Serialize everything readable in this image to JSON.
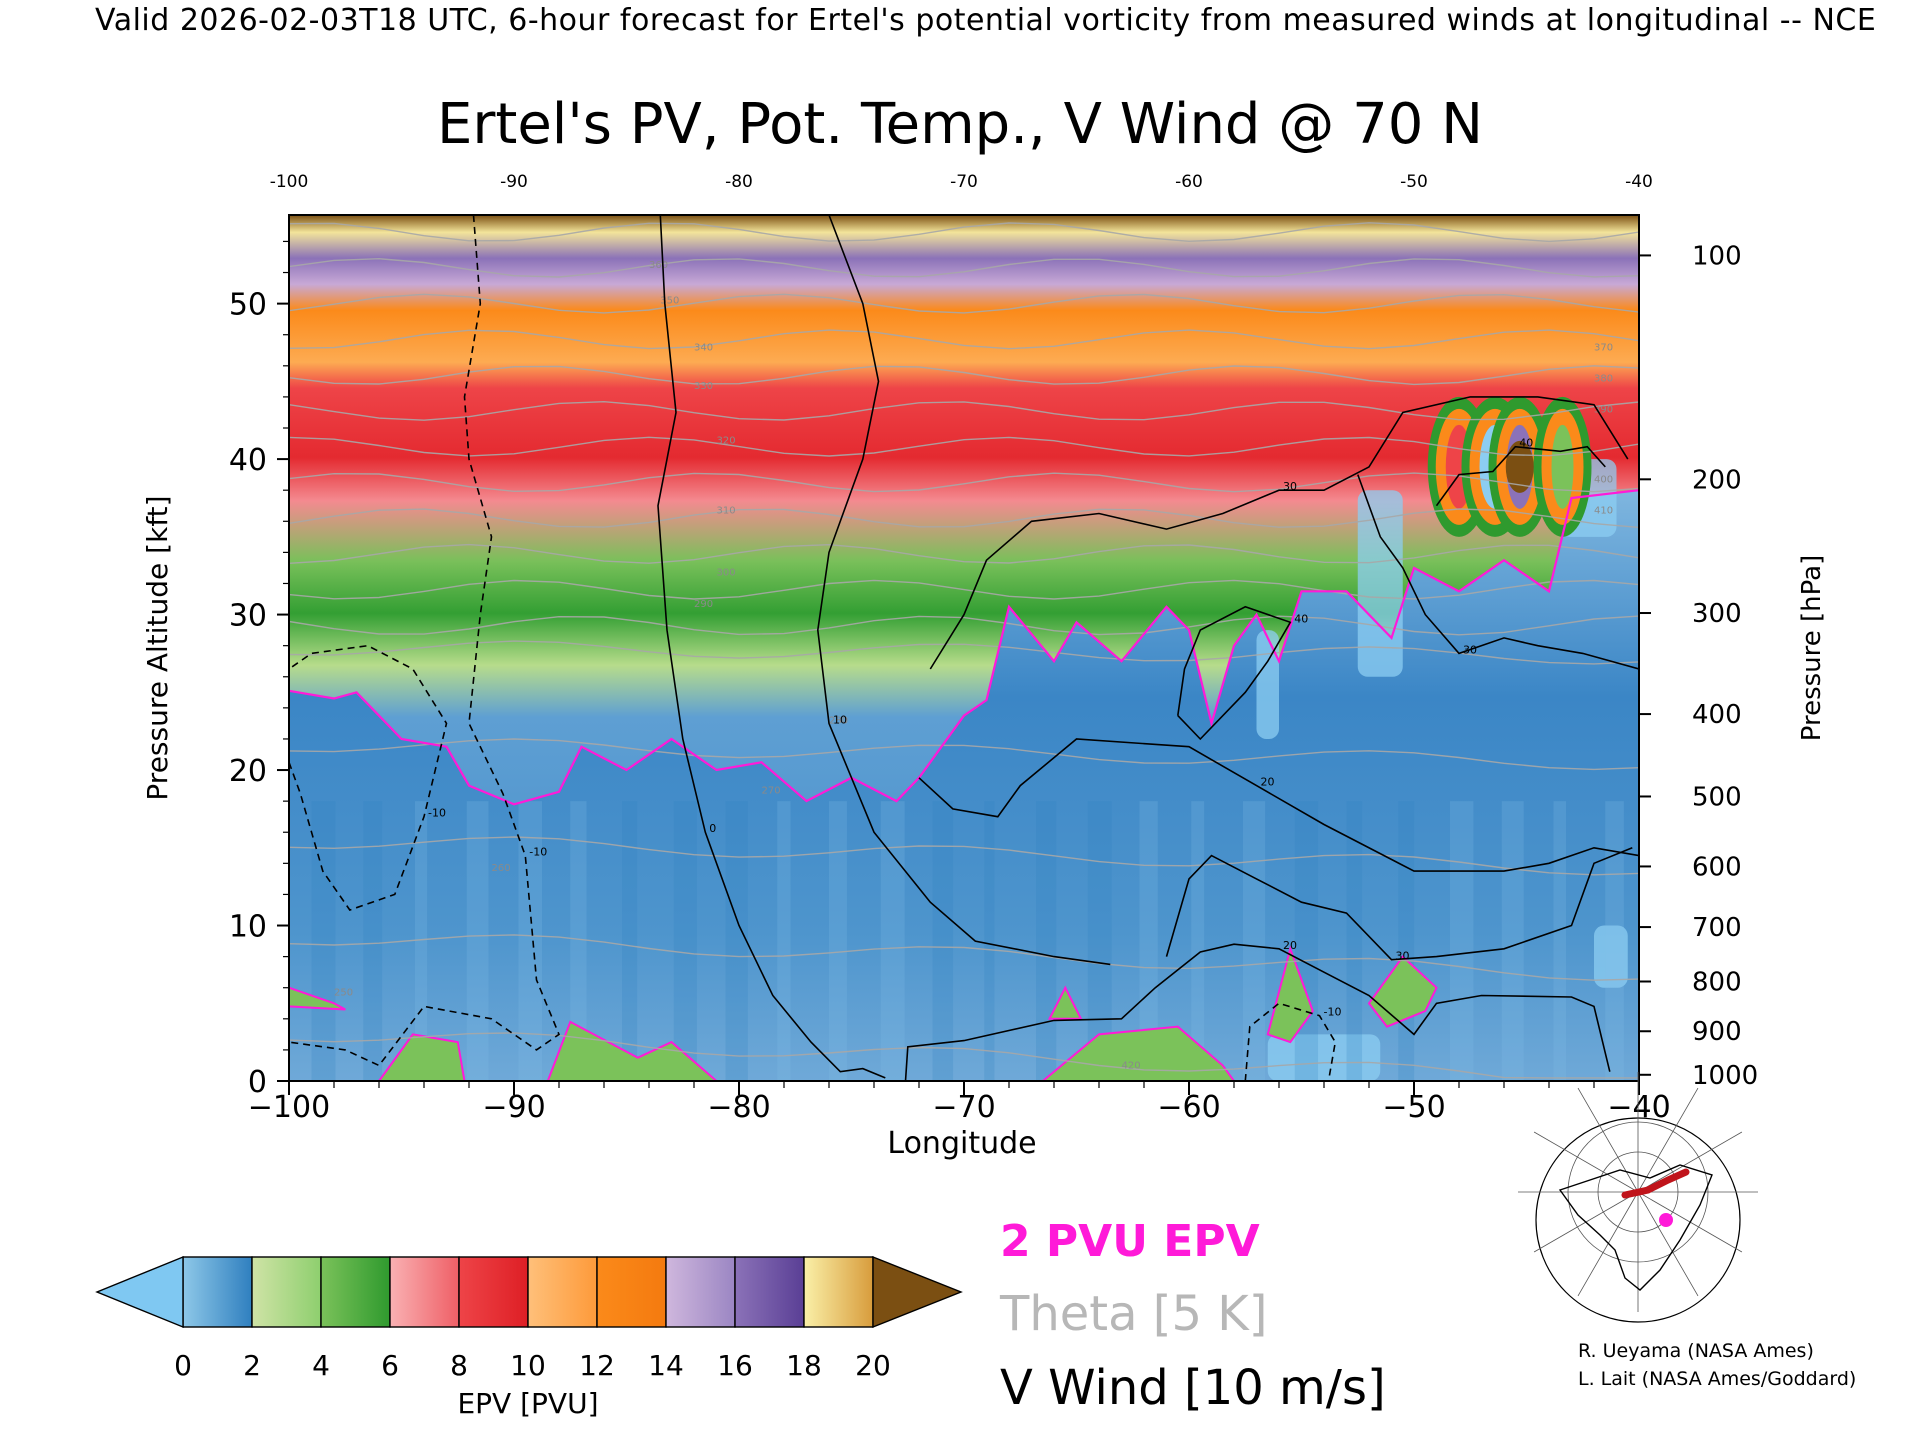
{
  "header": {
    "valid_line": "Valid 2026-02-03T18 UTC, 6-hour forecast for Ertel's potential vorticity from measured winds at longitudinal -- NCE"
  },
  "chart_data": {
    "type": "heatmap",
    "title": "Ertel's PV, Pot. Temp., V Wind @ 70 N",
    "xlabel": "Longitude",
    "ylabel": "Pressure Altitude [kft]",
    "y2label": "Pressure [hPa]",
    "xlim": [
      -100,
      -40
    ],
    "ylim": [
      0,
      55.7
    ],
    "x_ticks": [
      "−100",
      "−90",
      "−80",
      "−70",
      "−60",
      "−50",
      "−40"
    ],
    "x_tick_values": [
      -100,
      -90,
      -80,
      -70,
      -60,
      -50,
      -40
    ],
    "top_ticks": [
      "-100",
      "-90",
      "-80",
      "-70",
      "-60",
      "-50",
      "-40"
    ],
    "y_ticks": [
      "0",
      "10",
      "20",
      "30",
      "40",
      "50"
    ],
    "y_tick_values": [
      0,
      10,
      20,
      30,
      40,
      50
    ],
    "pressure_ticks": [
      {
        "label": "100",
        "kft": 53.1
      },
      {
        "label": "200",
        "kft": 38.7
      },
      {
        "label": "300",
        "kft": 30.1
      },
      {
        "label": "400",
        "kft": 23.6
      },
      {
        "label": "500",
        "kft": 18.3
      },
      {
        "label": "600",
        "kft": 13.8
      },
      {
        "label": "700",
        "kft": 9.9
      },
      {
        "label": "800",
        "kft": 6.4
      },
      {
        "label": "900",
        "kft": 3.2
      },
      {
        "label": "1000",
        "kft": 0.4
      }
    ],
    "epv_2pvu_trop_kft": [
      [
        -100,
        25.1
      ],
      [
        -98,
        24.6
      ],
      [
        -97,
        25.0
      ],
      [
        -95,
        22.0
      ],
      [
        -93,
        21.5
      ],
      [
        -92,
        19.0
      ],
      [
        -90,
        17.8
      ],
      [
        -88,
        18.6
      ],
      [
        -87,
        21.5
      ],
      [
        -85,
        20.0
      ],
      [
        -83,
        22.0
      ],
      [
        -81,
        20.0
      ],
      [
        -79,
        20.5
      ],
      [
        -77,
        18.0
      ],
      [
        -75,
        19.5
      ],
      [
        -73,
        18.0
      ],
      [
        -72,
        19.5
      ],
      [
        -70,
        23.5
      ],
      [
        -69,
        24.5
      ],
      [
        -68,
        30.5
      ],
      [
        -66,
        27.0
      ],
      [
        -65,
        29.5
      ],
      [
        -63,
        27.0
      ],
      [
        -61,
        30.5
      ],
      [
        -60,
        29.0
      ],
      [
        -59,
        23.0
      ],
      [
        -58,
        28.0
      ],
      [
        -57,
        30.0
      ],
      [
        -56,
        27.0
      ],
      [
        -55,
        31.5
      ],
      [
        -53,
        31.5
      ],
      [
        -51,
        28.5
      ],
      [
        -50,
        33.0
      ],
      [
        -48,
        31.5
      ],
      [
        -46,
        33.5
      ],
      [
        -44,
        31.5
      ],
      [
        -43,
        37.5
      ],
      [
        -40,
        38.0
      ]
    ],
    "theta_labels": [
      "250",
      "260",
      "270",
      "280",
      "290",
      "300",
      "310",
      "320",
      "330",
      "340",
      "350",
      "360",
      "370",
      "380",
      "390",
      "400",
      "410",
      "420"
    ],
    "v_wind_contours": [
      {
        "label": "0",
        "style": "solid",
        "points": [
          [
            -83.5,
            55.7
          ],
          [
            -83.3,
            50
          ],
          [
            -82.8,
            43
          ],
          [
            -83.6,
            37
          ],
          [
            -83.2,
            29
          ],
          [
            -82.5,
            22
          ],
          [
            -81.5,
            16
          ],
          [
            -80.0,
            10
          ],
          [
            -78.5,
            5.5
          ],
          [
            -76.8,
            2.5
          ],
          [
            -75.5,
            0.6
          ],
          [
            -74.5,
            0.8
          ],
          [
            -73.5,
            0.2
          ]
        ]
      },
      {
        "label": "10",
        "style": "solid",
        "points": [
          [
            -76.0,
            55.7
          ],
          [
            -74.5,
            50
          ],
          [
            -73.8,
            45
          ],
          [
            -74.5,
            40
          ],
          [
            -76.0,
            34
          ],
          [
            -76.5,
            29
          ],
          [
            -76.0,
            23
          ],
          [
            -74.0,
            16
          ],
          [
            -71.5,
            11.5
          ],
          [
            -69.5,
            9.0
          ],
          [
            -66.0,
            8.0
          ],
          [
            -63.5,
            7.5
          ]
        ]
      },
      {
        "label": "20",
        "style": "solid",
        "points": [
          [
            -72.6,
            0
          ],
          [
            -72.5,
            2.2
          ],
          [
            -70,
            2.6
          ],
          [
            -66,
            3.9
          ],
          [
            -63,
            4.0
          ],
          [
            -61.5,
            6.0
          ],
          [
            -59.5,
            8.3
          ],
          [
            -58,
            8.8
          ],
          [
            -56,
            8.5
          ],
          [
            -54,
            7.0
          ],
          [
            -52,
            5.5
          ],
          [
            -50,
            3.0
          ],
          [
            -49,
            5.0
          ],
          [
            -47,
            5.5
          ],
          [
            -43,
            5.4
          ],
          [
            -42,
            4.8
          ],
          [
            -41.3,
            0.6
          ]
        ]
      },
      {
        "label": "20",
        "style": "solid",
        "points": [
          [
            -72.0,
            19.5
          ],
          [
            -70.5,
            17.5
          ],
          [
            -68.5,
            17.0
          ],
          [
            -67.5,
            19.0
          ],
          [
            -65.0,
            22.0
          ],
          [
            -60,
            21.5
          ],
          [
            -57,
            19.0
          ],
          [
            -54,
            16.5
          ],
          [
            -50,
            13.5
          ],
          [
            -46,
            13.5
          ],
          [
            -44,
            14.0
          ],
          [
            -42,
            15.0
          ],
          [
            -40,
            14.5
          ]
        ]
      },
      {
        "label": "30",
        "style": "solid",
        "points": [
          [
            -61,
            8.0
          ],
          [
            -60,
            13.0
          ],
          [
            -59,
            14.5
          ],
          [
            -57,
            13.0
          ],
          [
            -55,
            11.5
          ],
          [
            -53,
            10.8
          ],
          [
            -51,
            7.8
          ],
          [
            -49,
            8.0
          ],
          [
            -46,
            8.5
          ],
          [
            -43,
            10.0
          ],
          [
            -42,
            14.0
          ],
          [
            -40.3,
            15.0
          ]
        ]
      },
      {
        "label": "30",
        "style": "solid",
        "points": [
          [
            -71.5,
            26.5
          ],
          [
            -70.0,
            30.0
          ],
          [
            -69.0,
            33.5
          ],
          [
            -67.0,
            36.0
          ],
          [
            -64.0,
            36.5
          ],
          [
            -61.0,
            35.5
          ],
          [
            -58.5,
            36.5
          ],
          [
            -56.0,
            38.0
          ],
          [
            -54.0,
            38.0
          ],
          [
            -52.0,
            39.5
          ],
          [
            -50.5,
            43.0
          ],
          [
            -47.5,
            44.0
          ],
          [
            -44.5,
            44.0
          ],
          [
            -42,
            43.5
          ],
          [
            -40.5,
            40.0
          ]
        ]
      },
      {
        "label": "30",
        "style": "solid",
        "points": [
          [
            -52.5,
            39.0
          ],
          [
            -51.5,
            35.0
          ],
          [
            -50.5,
            33.0
          ],
          [
            -49.5,
            30.0
          ],
          [
            -48,
            27.5
          ],
          [
            -46,
            28.5
          ],
          [
            -44.5,
            28.0
          ],
          [
            -42.5,
            27.5
          ],
          [
            -40,
            26.5
          ]
        ]
      },
      {
        "label": "40",
        "style": "solid",
        "points": [
          [
            -60.5,
            23.5
          ],
          [
            -60.2,
            26.5
          ],
          [
            -59.5,
            29.0
          ],
          [
            -57.5,
            30.5
          ],
          [
            -55.5,
            29.5
          ],
          [
            -56.5,
            27.0
          ],
          [
            -57.5,
            25.0
          ],
          [
            -59.5,
            22.0
          ],
          [
            -60.5,
            23.5
          ]
        ]
      },
      {
        "label": "40",
        "style": "solid",
        "points": [
          [
            -49,
            37.0
          ],
          [
            -48,
            39.0
          ],
          [
            -46.5,
            39.2
          ],
          [
            -45.5,
            40.8
          ],
          [
            -43.5,
            40.5
          ],
          [
            -42.3,
            40.8
          ],
          [
            -41.5,
            39.5
          ]
        ]
      },
      {
        "label": "-10",
        "style": "dashed",
        "points": [
          [
            -91.8,
            55.7
          ],
          [
            -91.5,
            50
          ],
          [
            -92.2,
            44
          ],
          [
            -92.0,
            40
          ],
          [
            -91.0,
            35
          ],
          [
            -91.5,
            30
          ],
          [
            -92.0,
            23
          ],
          [
            -90.5,
            18.5
          ],
          [
            -89.5,
            14.5
          ],
          [
            -89.0,
            6.5
          ],
          [
            -88.0,
            3.0
          ],
          [
            -89.0,
            2.0
          ],
          [
            -91.0,
            4.0
          ],
          [
            -94.0,
            4.8
          ],
          [
            -96.0,
            1.0
          ],
          [
            -97.5,
            2.0
          ],
          [
            -100,
            2.5
          ]
        ]
      },
      {
        "label": "-10",
        "style": "dashed",
        "points": [
          [
            -100,
            20.5
          ],
          [
            -99.5,
            18.5
          ],
          [
            -98.5,
            13.5
          ],
          [
            -97.3,
            11.0
          ],
          [
            -95.3,
            12.0
          ],
          [
            -94.0,
            17.0
          ],
          [
            -93.0,
            23.0
          ],
          [
            -94.5,
            26.5
          ],
          [
            -96.5,
            28.0
          ],
          [
            -99,
            27.5
          ],
          [
            -100,
            26.5
          ]
        ]
      },
      {
        "label": "-10",
        "style": "dashed",
        "points": [
          [
            -57.5,
            0
          ],
          [
            -57.3,
            3.5
          ],
          [
            -56.0,
            5.0
          ],
          [
            -54.2,
            4.2
          ],
          [
            -53.5,
            2.5
          ],
          [
            -53.8,
            0
          ]
        ]
      }
    ],
    "colorbar": {
      "label": "EPV [PVU]",
      "ticks": [
        "0",
        "2",
        "4",
        "6",
        "8",
        "10",
        "12",
        "14",
        "16",
        "18",
        "20"
      ],
      "underflow_color": "#7fc8f2",
      "overflow_color": "#7b4f12",
      "bands": [
        {
          "from": 0,
          "to": 2,
          "colors": [
            "#8ec8e8",
            "#2f7fbf"
          ]
        },
        {
          "from": 2,
          "to": 4,
          "colors": [
            "#cfe3a6",
            "#8ecf6e"
          ]
        },
        {
          "from": 4,
          "to": 6,
          "colors": [
            "#7bc25a",
            "#2f9a2e"
          ]
        },
        {
          "from": 6,
          "to": 8,
          "colors": [
            "#f9b1b3",
            "#ef5f66"
          ]
        },
        {
          "from": 8,
          "to": 10,
          "colors": [
            "#ee4448",
            "#de1f25"
          ]
        },
        {
          "from": 10,
          "to": 12,
          "colors": [
            "#ffc07a",
            "#fd9a3a"
          ]
        },
        {
          "from": 12,
          "to": 14,
          "colors": [
            "#fb8a1a",
            "#f47a0f"
          ]
        },
        {
          "from": 14,
          "to": 16,
          "colors": [
            "#cfb7dd",
            "#9b86c3"
          ]
        },
        {
          "from": 16,
          "to": 18,
          "colors": [
            "#8b72b8",
            "#5a3f95"
          ]
        },
        {
          "from": 18,
          "to": 20,
          "colors": [
            "#faf0a8",
            "#d89c3c"
          ]
        }
      ]
    },
    "legend": {
      "items": [
        {
          "text": "2 PVU EPV",
          "color": "#ff1ad8"
        },
        {
          "text": "Theta [5 K]",
          "color": "#b7b7b7"
        },
        {
          "text": "V Wind [10 m/s]",
          "color": "#000000"
        }
      ]
    },
    "credits": [
      "R. Ueyama (NASA Ames)",
      "L. Lait (NASA Ames/Goddard)"
    ]
  }
}
